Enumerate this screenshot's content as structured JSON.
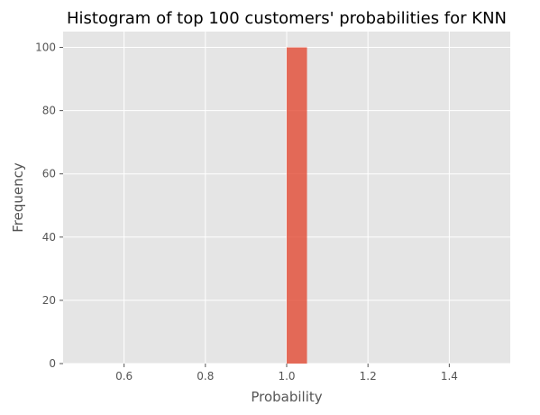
{
  "chart_data": {
    "type": "bar",
    "title": "Histogram of top 100 customers' probabilities for KNN",
    "xlabel": "Probability",
    "ylabel": "Frequency",
    "xlim": [
      0.45,
      1.55
    ],
    "ylim": [
      0,
      105
    ],
    "x_ticks": [
      "0.6",
      "0.8",
      "1.0",
      "1.2",
      "1.4"
    ],
    "y_ticks": [
      "0",
      "20",
      "40",
      "60",
      "80",
      "100"
    ],
    "grid": true,
    "bins": [
      {
        "x_start": 1.0,
        "x_end": 1.05,
        "count": 100
      }
    ],
    "colors": {
      "bar": "#E24A33",
      "background": "#E5E5E5",
      "grid": "#FFFFFF"
    }
  }
}
